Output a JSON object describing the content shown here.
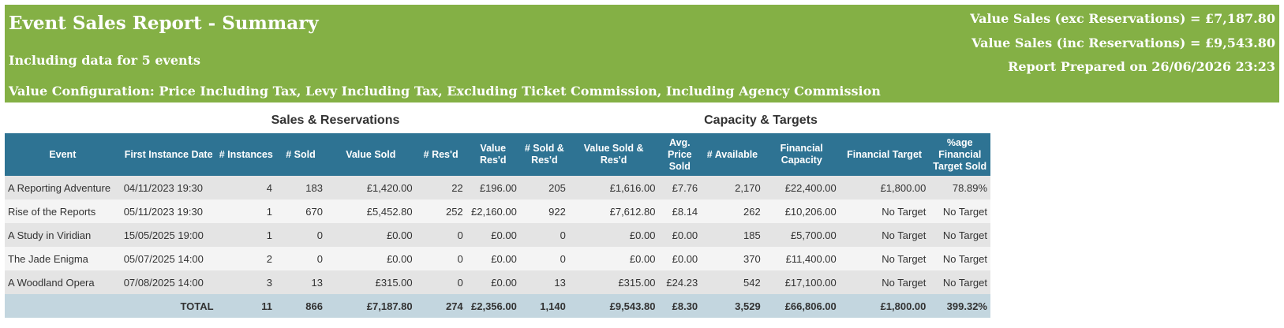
{
  "header": {
    "title": "Event Sales Report - Summary",
    "subtitle": "Including data for 5 events",
    "config": "Value Configuration: Price Including Tax, Levy Including Tax, Excluding Ticket Commission, Including Agency Commission",
    "value_exc": "Value Sales (exc Reservations) = £7,187.80",
    "value_inc": "Value Sales (inc Reservations) = £9,543.80",
    "prepared": "Report Prepared on 26/06/2026 23:23"
  },
  "sections": {
    "sales": "Sales & Reservations",
    "capacity": "Capacity & Targets"
  },
  "table": {
    "columns": [
      "Event",
      "First Instance Date",
      "# Instances",
      "# Sold",
      "Value Sold",
      "# Res'd",
      "Value Res'd",
      "# Sold & Res'd",
      "Value Sold & Res'd",
      "Avg. Price Sold",
      "# Available",
      "Financial Capacity",
      "Financial Target",
      "%age Financial Target Sold"
    ],
    "rows": [
      [
        "A Reporting Adventure",
        "04/11/2023 19:30",
        "4",
        "183",
        "£1,420.00",
        "22",
        "£196.00",
        "205",
        "£1,616.00",
        "£7.76",
        "2,170",
        "£22,400.00",
        "£1,800.00",
        "78.89%"
      ],
      [
        "Rise of the Reports",
        "05/11/2023 19:30",
        "1",
        "670",
        "£5,452.80",
        "252",
        "£2,160.00",
        "922",
        "£7,612.80",
        "£8.14",
        "262",
        "£10,206.00",
        "No Target",
        "No Target"
      ],
      [
        "A Study in Viridian",
        "15/05/2025 19:00",
        "1",
        "0",
        "£0.00",
        "0",
        "£0.00",
        "0",
        "£0.00",
        "£0.00",
        "185",
        "£5,700.00",
        "No Target",
        "No Target"
      ],
      [
        "The Jade Enigma",
        "05/07/2025 14:00",
        "2",
        "0",
        "£0.00",
        "0",
        "£0.00",
        "0",
        "£0.00",
        "£0.00",
        "370",
        "£11,400.00",
        "No Target",
        "No Target"
      ],
      [
        "A Woodland Opera",
        "07/08/2025 14:00",
        "3",
        "13",
        "£315.00",
        "0",
        "£0.00",
        "13",
        "£315.00",
        "£24.23",
        "542",
        "£17,100.00",
        "No Target",
        "No Target"
      ]
    ],
    "total": [
      "TOTAL",
      "11",
      "866",
      "£7,187.80",
      "274",
      "£2,356.00",
      "1,140",
      "£9,543.80",
      "£8.30",
      "3,529",
      "£66,806.00",
      "£1,800.00",
      "399.32%"
    ]
  },
  "colors": {
    "banner": "#84b045",
    "table_header": "#2e7393",
    "total_row": "#c3d6df"
  }
}
